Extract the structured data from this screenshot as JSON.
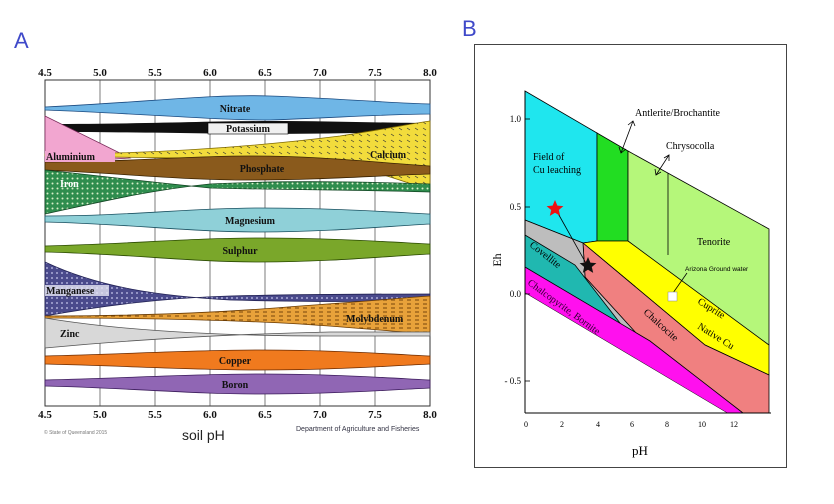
{
  "panels": {
    "a_letter": "A",
    "b_letter": "B"
  },
  "panel_a": {
    "ph_ticks": [
      "4.5",
      "5.0",
      "5.5",
      "6.0",
      "6.5",
      "7.0",
      "7.5",
      "8.0"
    ],
    "nutrients": [
      "Nitrate",
      "Potassium",
      "Aluminium",
      "Calcium",
      "Phosphate",
      "Iron",
      "Magnesium",
      "Sulphur",
      "Manganese",
      "Molybdenum",
      "Zinc",
      "Copper",
      "Boron"
    ],
    "xlabel": "soil pH",
    "copyright": "© State of Queensland 2015",
    "credit": "Department of Agriculture and Fisheries",
    "colors": {
      "Nitrate": "#6fb6e6",
      "Potassium": "#101010",
      "Aluminium": "#f2a6d0",
      "Calcium": "#f2dc3c",
      "Phosphate": "#8a5a1c",
      "Iron": "#2f8d4e",
      "Magnesium": "#8fd0d8",
      "Sulphur": "#7aa72a",
      "Manganese": "#4a4a8c",
      "Molybdenum": "#e8a23a",
      "Zinc": "#d8d8d8",
      "Copper": "#f07a1e",
      "Boron": "#9066b4"
    }
  },
  "panel_b": {
    "ylabel": "Eh",
    "xlabel": "pH",
    "y_ticks": [
      "1.0",
      "0.5",
      "0.0",
      "- 0.5"
    ],
    "x_ticks": [
      "0",
      "2",
      "4",
      "6",
      "8",
      "10",
      "12"
    ],
    "labels": {
      "field": "Field of",
      "field2": "Cu leaching",
      "antlerite": "Antlerite/Brochantite",
      "chrysocolla": "Chrysocolla",
      "tenorite": "Tenorite",
      "arizona": "Arizona Ground water",
      "covellite": "Covellite",
      "cuprite": "Cuprite",
      "chalcopyrite": "Chalcopyrite, Bornite",
      "chalcocite": "Chalcocite",
      "native_cu": "Native Cu"
    },
    "colors": {
      "leaching": "#1fe6ee",
      "antlerite": "#22dd22",
      "chrysocolla": "#b5f77a",
      "tenorite": "#b5f77a",
      "cuprite": "#ffff00",
      "native": "#f08080",
      "chalcocite": "#bdbdbd",
      "covellite": "#20b8b0",
      "chalcopyrite": "#ff10ee"
    }
  }
}
